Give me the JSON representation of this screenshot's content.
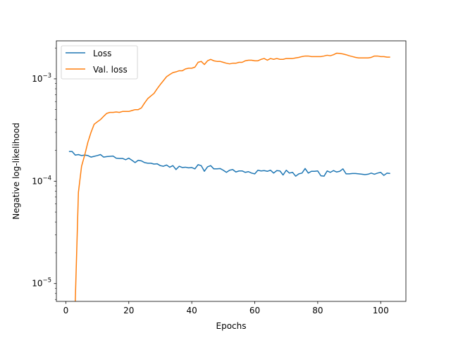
{
  "chart_data": {
    "type": "line",
    "title": "",
    "xlabel": "Epochs",
    "ylabel": "Negative log-likelihood",
    "xlim": [
      -3,
      108
    ],
    "ylim": [
      6.7e-06,
      0.00235
    ],
    "yscale": "log",
    "grid": false,
    "legend_position": "top-left",
    "x_ticks": [
      0,
      20,
      40,
      60,
      80,
      100
    ],
    "x_tick_labels": [
      "0",
      "20",
      "40",
      "60",
      "80",
      "100"
    ],
    "y_ticks": [
      1e-05,
      0.0001,
      0.001
    ],
    "y_tick_labels": [
      {
        "base": "10",
        "exp": "−5"
      },
      {
        "base": "10",
        "exp": "−4"
      },
      {
        "base": "10",
        "exp": "−3"
      }
    ],
    "series": [
      {
        "name": "Loss",
        "color": "#1f77b4",
        "x": [
          1,
          2,
          3,
          4,
          5,
          6,
          7,
          8,
          9,
          10,
          11,
          12,
          13,
          14,
          15,
          16,
          17,
          18,
          19,
          20,
          21,
          22,
          23,
          24,
          25,
          26,
          27,
          28,
          29,
          30,
          31,
          32,
          33,
          34,
          35,
          36,
          37,
          38,
          39,
          40,
          41,
          42,
          43,
          44,
          45,
          46,
          47,
          48,
          49,
          50,
          51,
          52,
          53,
          54,
          55,
          56,
          57,
          58,
          59,
          60,
          61,
          62,
          63,
          64,
          65,
          66,
          67,
          68,
          69,
          70,
          71,
          72,
          73,
          74,
          75,
          76,
          77,
          78,
          79,
          80,
          81,
          82,
          83,
          84,
          85,
          86,
          87,
          88,
          89,
          90,
          91,
          92,
          93,
          94,
          95,
          96,
          97,
          98,
          99,
          100,
          101,
          102,
          103
        ],
        "y": [
          0.000195,
          0.000195,
          0.00018,
          0.000182,
          0.000178,
          0.00018,
          0.000178,
          0.000172,
          0.000175,
          0.000178,
          0.000182,
          0.000172,
          0.000174,
          0.000175,
          0.000176,
          0.000168,
          0.000167,
          0.000167,
          0.000162,
          0.000168,
          0.00016,
          0.000152,
          0.00016,
          0.000158,
          0.000152,
          0.00015,
          0.00015,
          0.000147,
          0.000148,
          0.000142,
          0.00014,
          0.000144,
          0.000137,
          0.000142,
          0.00013,
          0.00014,
          0.000136,
          0.000137,
          0.000135,
          0.000136,
          0.000132,
          0.000145,
          0.000142,
          0.000125,
          0.000138,
          0.000142,
          0.000132,
          0.000132,
          0.000133,
          0.000128,
          0.000122,
          0.000128,
          0.00013,
          0.000123,
          0.000126,
          0.000126,
          0.000122,
          0.000124,
          0.00012,
          0.000118,
          0.000128,
          0.000126,
          0.000127,
          0.000125,
          0.000128,
          0.00012,
          0.000127,
          0.000126,
          0.000115,
          0.000128,
          0.00012,
          0.000122,
          0.000112,
          0.000118,
          0.00012,
          0.000133,
          0.00012,
          0.000125,
          0.000125,
          0.000126,
          0.000113,
          0.000112,
          0.000126,
          0.000122,
          0.000127,
          0.000123,
          0.000125,
          0.000132,
          0.000118,
          0.000118,
          0.000119,
          0.000119,
          0.000118,
          0.000117,
          0.000116,
          0.000117,
          0.00012,
          0.000117,
          0.00012,
          0.000122,
          0.000114,
          0.00012,
          0.000119
        ]
      },
      {
        "name": "Val. loss",
        "color": "#ff7f0e",
        "x": [
          3,
          4,
          5,
          6,
          7,
          8,
          9,
          10,
          11,
          12,
          13,
          14,
          15,
          16,
          17,
          18,
          19,
          20,
          21,
          22,
          23,
          24,
          25,
          26,
          27,
          28,
          29,
          30,
          31,
          32,
          33,
          34,
          35,
          36,
          37,
          38,
          39,
          40,
          41,
          42,
          43,
          44,
          45,
          46,
          47,
          48,
          49,
          50,
          51,
          52,
          53,
          54,
          55,
          56,
          57,
          58,
          59,
          60,
          61,
          62,
          63,
          64,
          65,
          66,
          67,
          68,
          69,
          70,
          71,
          72,
          73,
          74,
          75,
          76,
          77,
          78,
          79,
          80,
          81,
          82,
          83,
          84,
          85,
          86,
          87,
          88,
          89,
          90,
          91,
          92,
          93,
          94,
          95,
          96,
          97,
          98,
          99,
          100,
          101,
          102,
          103
        ],
        "y": [
          6.7e-06,
          7.8e-05,
          0.00014,
          0.00018,
          0.00024,
          0.0003,
          0.00036,
          0.00038,
          0.0004,
          0.00043,
          0.00046,
          0.00047,
          0.00047,
          0.000475,
          0.00047,
          0.00048,
          0.00048,
          0.00048,
          0.00049,
          0.0005,
          0.0005,
          0.00052,
          0.00058,
          0.00064,
          0.00068,
          0.00072,
          0.0008,
          0.00088,
          0.00096,
          0.00105,
          0.0011,
          0.00115,
          0.00117,
          0.0012,
          0.0012,
          0.00125,
          0.00127,
          0.00127,
          0.0013,
          0.00145,
          0.00148,
          0.00138,
          0.0015,
          0.00155,
          0.0015,
          0.00148,
          0.00148,
          0.00145,
          0.00142,
          0.0014,
          0.00142,
          0.00142,
          0.00145,
          0.00145,
          0.0015,
          0.00152,
          0.00152,
          0.0015,
          0.0015,
          0.00155,
          0.00158,
          0.00152,
          0.00158,
          0.00155,
          0.00158,
          0.00155,
          0.00155,
          0.00158,
          0.00158,
          0.00158,
          0.0016,
          0.00162,
          0.00165,
          0.00167,
          0.00167,
          0.00165,
          0.00165,
          0.00165,
          0.00165,
          0.00167,
          0.0017,
          0.00168,
          0.00172,
          0.00178,
          0.00177,
          0.00175,
          0.00172,
          0.00168,
          0.00165,
          0.00162,
          0.0016,
          0.0016,
          0.0016,
          0.0016,
          0.00162,
          0.00167,
          0.00167,
          0.00165,
          0.00165,
          0.00163,
          0.00163
        ]
      }
    ]
  }
}
